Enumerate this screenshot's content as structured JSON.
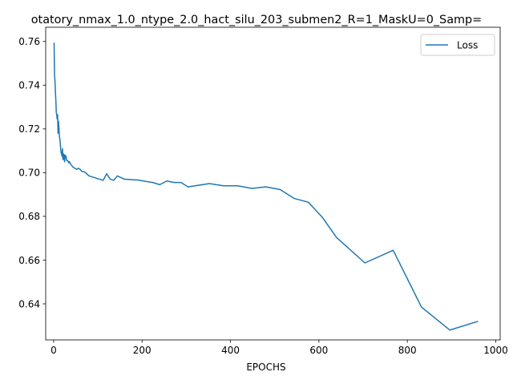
{
  "chart_data": {
    "type": "line",
    "title": "otatory_nmax_1.0_ntype_2.0_hact_silu_203_submen2_R=1_MaskU=0_Samp=",
    "xlabel": "EPOCHS",
    "ylabel": "",
    "xlim": [
      -18,
      1010
    ],
    "ylim": [
      0.6235,
      0.7665
    ],
    "xticks": [
      0,
      200,
      400,
      600,
      800,
      1000
    ],
    "xtick_labels": [
      "0",
      "200",
      "400",
      "600",
      "800",
      "1000"
    ],
    "yticks": [
      0.64,
      0.66,
      0.68,
      0.7,
      0.72,
      0.74,
      0.76
    ],
    "ytick_labels": [
      "0.64",
      "0.66",
      "0.68",
      "0.70",
      "0.72",
      "0.74",
      "0.76"
    ],
    "grid": false,
    "legend_position": "upper right",
    "series": [
      {
        "name": "Loss",
        "color": "#1f77b4",
        "x": [
          1,
          2,
          3,
          4,
          5,
          6,
          7,
          8,
          9,
          10,
          11,
          12,
          13,
          14,
          15,
          16,
          17,
          18,
          19,
          20,
          21,
          22,
          23,
          24,
          25,
          26,
          27,
          28,
          29,
          30,
          32,
          34,
          36,
          38,
          40,
          44,
          48,
          52,
          56,
          60,
          64,
          68,
          72,
          80,
          88,
          96,
          104,
          112,
          120,
          128,
          136,
          144,
          160,
          176,
          192,
          208,
          224,
          240,
          256,
          272,
          288,
          304,
          320,
          352,
          384,
          416,
          448,
          480,
          512,
          544,
          576,
          608,
          640,
          704,
          768,
          832,
          896,
          960
        ],
        "y": [
          0.7595,
          0.7445,
          0.742,
          0.737,
          0.733,
          0.7275,
          0.7265,
          0.7245,
          0.7265,
          0.718,
          0.7235,
          0.7205,
          0.7165,
          0.7155,
          0.7135,
          0.7105,
          0.709,
          0.7085,
          0.7075,
          0.711,
          0.706,
          0.7065,
          0.7085,
          0.706,
          0.705,
          0.708,
          0.7075,
          0.7075,
          0.706,
          0.7055,
          0.7055,
          0.7045,
          0.705,
          0.704,
          0.7035,
          0.7025,
          0.702,
          0.7015,
          0.702,
          0.7015,
          0.7005,
          0.7005,
          0.7,
          0.6985,
          0.698,
          0.6975,
          0.697,
          0.6965,
          0.6995,
          0.697,
          0.6965,
          0.6985,
          0.697,
          0.6968,
          0.6966,
          0.696,
          0.6955,
          0.6945,
          0.6962,
          0.6955,
          0.6955,
          0.6935,
          0.694,
          0.695,
          0.694,
          0.694,
          0.6928,
          0.6935,
          0.6923,
          0.6882,
          0.6865,
          0.6795,
          0.6703,
          0.6587,
          0.6645,
          0.6385,
          0.628,
          0.632
        ]
      }
    ]
  }
}
